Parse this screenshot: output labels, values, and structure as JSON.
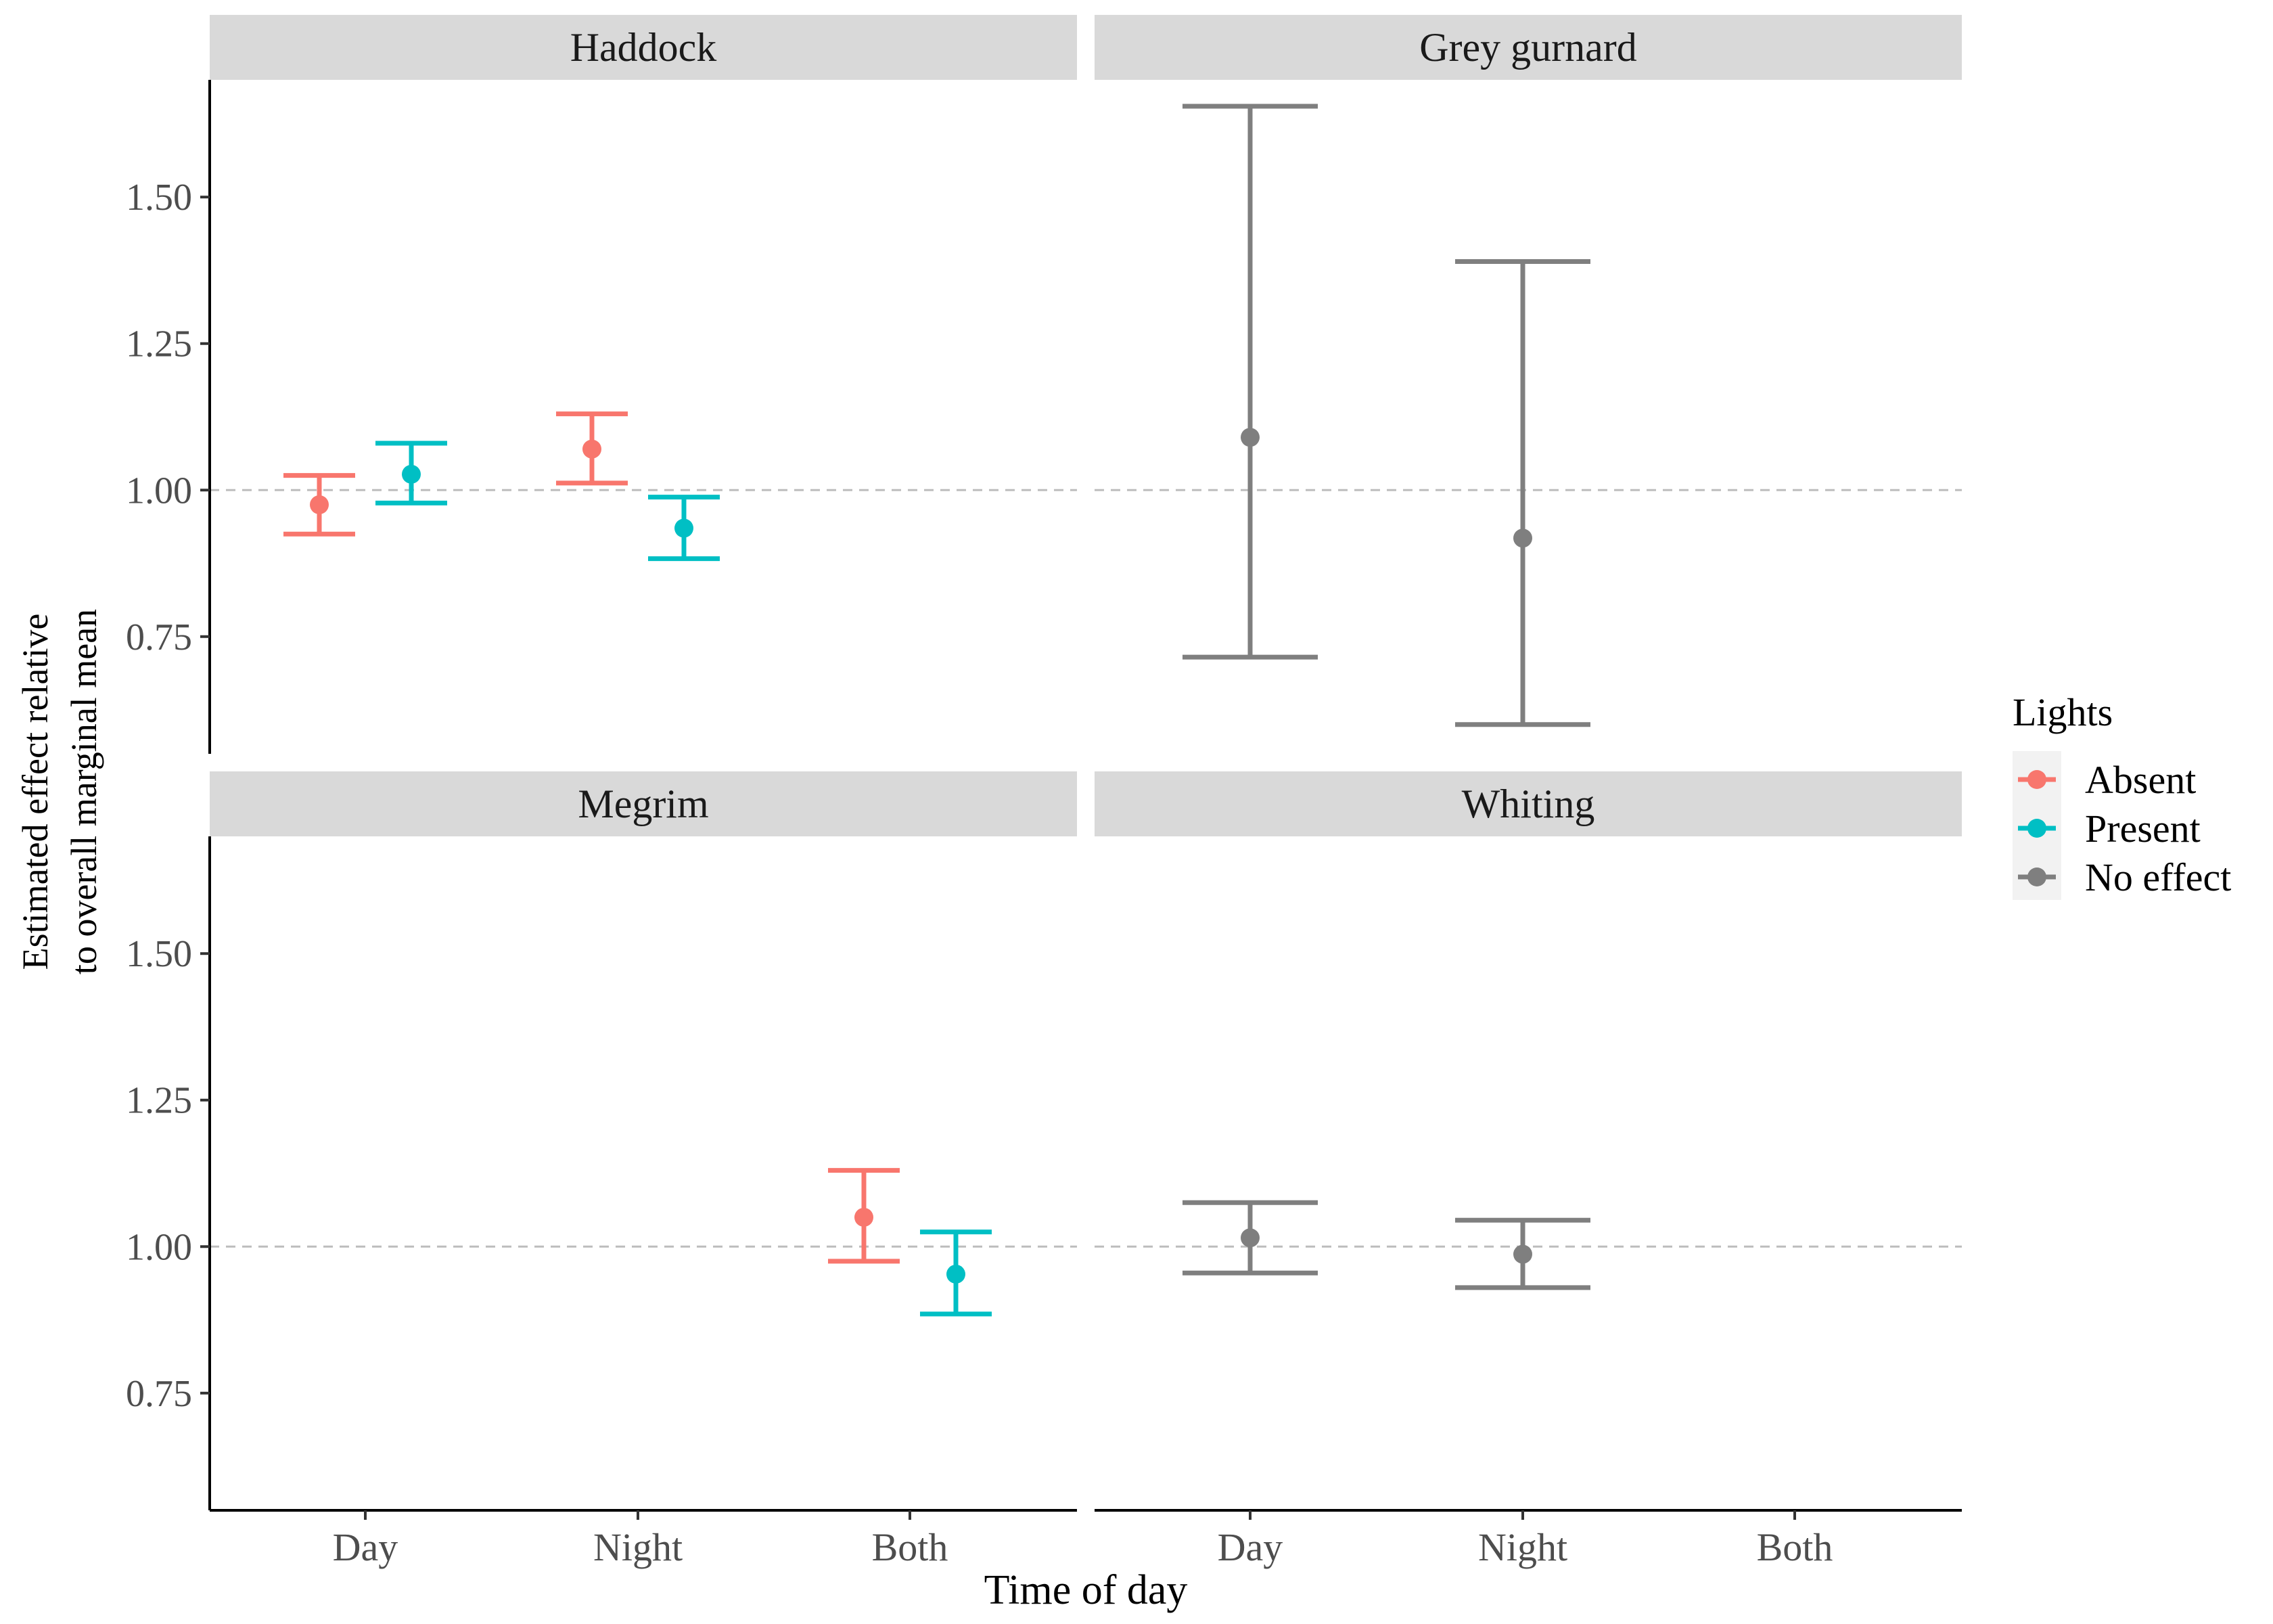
{
  "chart_data": {
    "type": "scatter",
    "variant": "point-range with error bars, faceted 2x2",
    "xlabel": "Time of day",
    "ylabel_lines": [
      "Estimated effect relative",
      "to overall marginal mean"
    ],
    "categories": [
      "Day",
      "Night",
      "Both"
    ],
    "y_ticks": [
      "0.75",
      "1.00",
      "1.25",
      "1.50"
    ],
    "y_tick_values": [
      0.75,
      1.0,
      1.25,
      1.5
    ],
    "ylim": [
      0.55,
      1.7
    ],
    "reference_line": {
      "y": 1.0,
      "style": "dashed"
    },
    "grid": false,
    "legend": {
      "title": "Lights",
      "position": "right",
      "entries": [
        {
          "name": "Absent",
          "color": "#F8766D"
        },
        {
          "name": "Present",
          "color": "#00BFC4"
        },
        {
          "name": "No effect",
          "color": "#7F7F7F"
        }
      ]
    },
    "facets": [
      {
        "title": "Haddock",
        "points": [
          {
            "x": "Day",
            "lights": "Absent",
            "y": 0.975,
            "lo": 0.925,
            "hi": 1.025
          },
          {
            "x": "Day",
            "lights": "Present",
            "y": 1.027,
            "lo": 0.978,
            "hi": 1.08
          },
          {
            "x": "Night",
            "lights": "Absent",
            "y": 1.07,
            "lo": 1.012,
            "hi": 1.13
          },
          {
            "x": "Night",
            "lights": "Present",
            "y": 0.935,
            "lo": 0.883,
            "hi": 0.988
          }
        ]
      },
      {
        "title": "Grey gurnard",
        "points": [
          {
            "x": "Day",
            "lights": "No effect",
            "y": 1.09,
            "lo": 0.715,
            "hi": 1.655
          },
          {
            "x": "Night",
            "lights": "No effect",
            "y": 0.918,
            "lo": 0.6,
            "hi": 1.39
          }
        ]
      },
      {
        "title": "Megrim",
        "points": [
          {
            "x": "Both",
            "lights": "Absent",
            "y": 1.05,
            "lo": 0.975,
            "hi": 1.13
          },
          {
            "x": "Both",
            "lights": "Present",
            "y": 0.953,
            "lo": 0.885,
            "hi": 1.025
          }
        ]
      },
      {
        "title": "Whiting",
        "points": [
          {
            "x": "Day",
            "lights": "No effect",
            "y": 1.015,
            "lo": 0.955,
            "hi": 1.075
          },
          {
            "x": "Night",
            "lights": "No effect",
            "y": 0.987,
            "lo": 0.93,
            "hi": 1.045
          }
        ]
      }
    ]
  }
}
